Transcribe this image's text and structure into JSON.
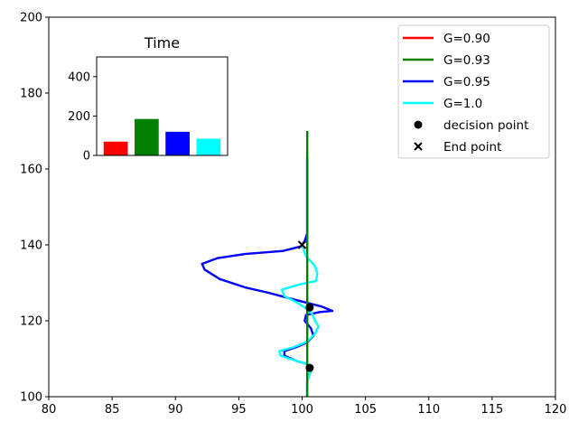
{
  "chart_data": [
    {
      "type": "line",
      "title": "",
      "xlabel": "",
      "ylabel": "",
      "xlim": [
        80,
        120
      ],
      "ylim": [
        100,
        200
      ],
      "xticks": [
        "80",
        "85",
        "90",
        "95",
        "100",
        "105",
        "110",
        "115",
        "120"
      ],
      "yticks": [
        "100",
        "120",
        "140",
        "160",
        "180",
        "200"
      ],
      "legend_position": "top-right",
      "series": [
        {
          "name": "G=0.90",
          "color": "#ff0000",
          "points": [
            [
              100.4,
              100
            ],
            [
              100.4,
              170
            ]
          ]
        },
        {
          "name": "G=0.93",
          "color": "#008000",
          "points": [
            [
              100.4,
              100
            ],
            [
              100.4,
              170
            ]
          ]
        },
        {
          "name": "G=0.95",
          "color": "#0000ff",
          "points": [
            [
              100.4,
              100
            ],
            [
              100.4,
              104
            ],
            [
              100.6,
              106
            ],
            [
              100.8,
              107.4
            ],
            [
              100.5,
              108.5
            ],
            [
              99.5,
              109.5
            ],
            [
              98.6,
              110.8
            ],
            [
              98.6,
              112
            ],
            [
              99.5,
              113
            ],
            [
              100.4,
              114.3
            ],
            [
              100.9,
              116
            ],
            [
              100.7,
              118
            ],
            [
              100.2,
              120
            ],
            [
              100.3,
              121.5
            ],
            [
              101.4,
              122.3
            ],
            [
              102.4,
              122.6
            ],
            [
              101.5,
              123.8
            ],
            [
              99.5,
              125.5
            ],
            [
              97.2,
              127.5
            ],
            [
              95.5,
              128.8
            ],
            [
              93.5,
              131
            ],
            [
              92.3,
              133.5
            ],
            [
              92.1,
              135
            ],
            [
              93.3,
              136.5
            ],
            [
              95.5,
              137.6
            ],
            [
              98.5,
              138.4
            ],
            [
              99.9,
              139.6
            ],
            [
              100.2,
              141
            ],
            [
              100.4,
              143
            ],
            [
              100.4,
              147
            ],
            [
              100.4,
              163
            ]
          ]
        },
        {
          "name": "G=1.0",
          "color": "#00ffff",
          "points": [
            [
              100.4,
              100
            ],
            [
              100.4,
              104
            ],
            [
              100.6,
              106
            ],
            [
              100.8,
              107.4
            ],
            [
              100.5,
              108.5
            ],
            [
              99.5,
              109.5
            ],
            [
              98.3,
              110.8
            ],
            [
              98.2,
              112
            ],
            [
              99.3,
              113
            ],
            [
              100.4,
              114.5
            ],
            [
              101.0,
              116.5
            ],
            [
              101.3,
              118.5
            ],
            [
              101.0,
              120.2
            ],
            [
              100.8,
              121.8
            ],
            [
              100.2,
              123.5
            ],
            [
              99.5,
              125
            ],
            [
              98.6,
              126.5
            ],
            [
              98.4,
              128.2
            ],
            [
              99.7,
              129.5
            ],
            [
              101.1,
              130.5
            ],
            [
              101.2,
              132.5
            ],
            [
              101.0,
              134.5
            ],
            [
              100.3,
              137
            ],
            [
              100.0,
              140
            ]
          ]
        }
      ],
      "scatter": [
        {
          "name": "decision point",
          "marker": "circle",
          "points": [
            [
              100.6,
              107.6
            ],
            [
              100.6,
              123.5
            ]
          ]
        },
        {
          "name": "End point",
          "marker": "x",
          "points": [
            [
              100.0,
              140.0
            ]
          ]
        }
      ]
    },
    {
      "type": "bar",
      "title": "Time",
      "ylim": [
        0,
        500
      ],
      "yticks": [
        "0",
        "200",
        "400"
      ],
      "categories": [
        "G=0.90",
        "G=0.93",
        "G=0.95",
        "G=1.0"
      ],
      "values": [
        70,
        185,
        120,
        85
      ],
      "colors": [
        "#ff0000",
        "#008000",
        "#0000ff",
        "#00ffff"
      ]
    }
  ]
}
